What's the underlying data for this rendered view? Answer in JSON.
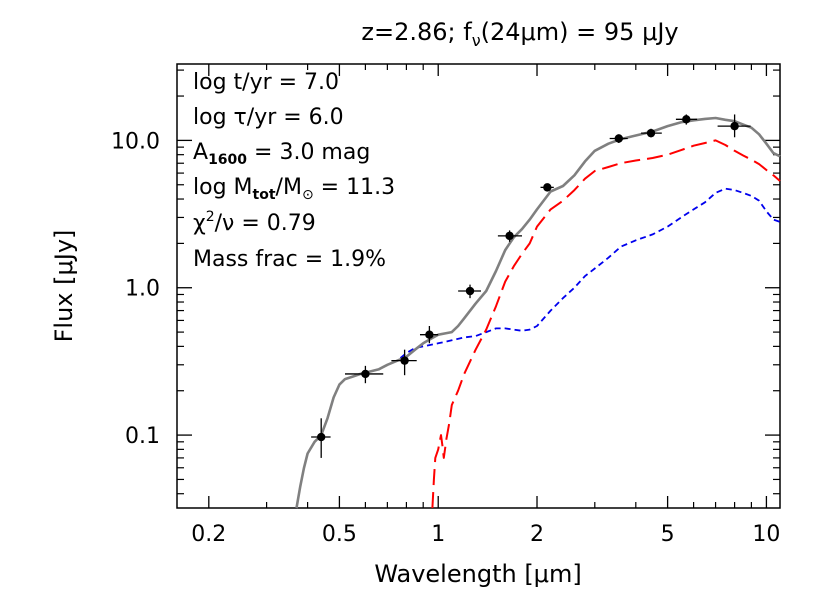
{
  "chart_data": {
    "type": "line",
    "title": "z=2.86; f",
    "title_sub": "ν",
    "title_rest": "(24μm) =  95 μJy",
    "xlabel": "Wavelength [μm]",
    "ylabel": "Flux [μJy]",
    "x_scale": "log",
    "y_scale": "log",
    "xlim": [
      0.16,
      11
    ],
    "ylim": [
      0.032,
      33
    ],
    "x_ticks": [
      0.2,
      0.5,
      1,
      2,
      5,
      10
    ],
    "x_tick_labels": [
      "0.2",
      "0.5",
      "1",
      "2",
      "5",
      "10"
    ],
    "y_ticks": [
      0.1,
      1.0,
      10.0
    ],
    "y_tick_labels": [
      "0.1",
      "1.0",
      "10.0"
    ],
    "annotations": [
      "log t/yr =  7.0",
      "log τ/yr =  6.0",
      "A",
      "1600",
      " = 3.0 mag",
      "log M",
      "tot",
      "/M",
      "⊙",
      " = 11.3",
      "χ",
      "2",
      "/ν = 0.79",
      "Mass frac =  1.9%"
    ],
    "series": [
      {
        "color": "#808080",
        "style": "solid",
        "x": [
          0.37,
          0.38,
          0.39,
          0.4,
          0.42,
          0.44,
          0.46,
          0.48,
          0.5,
          0.52,
          0.55,
          0.58,
          0.62,
          0.66,
          0.7,
          0.75,
          0.8,
          0.85,
          0.9,
          0.95,
          1.0,
          1.05,
          1.1,
          1.15,
          1.2,
          1.3,
          1.4,
          1.5,
          1.6,
          1.7,
          1.8,
          1.9,
          2.0,
          2.2,
          2.4,
          2.6,
          2.8,
          3.0,
          3.3,
          3.6,
          4.0,
          4.5,
          5.0,
          5.5,
          6.0,
          6.5,
          7.0,
          7.5,
          8.0,
          8.5,
          9.0,
          9.5,
          10.0,
          10.5,
          11.0
        ],
        "y": [
          0.032,
          0.045,
          0.06,
          0.075,
          0.09,
          0.1,
          0.13,
          0.18,
          0.22,
          0.24,
          0.25,
          0.26,
          0.27,
          0.28,
          0.3,
          0.32,
          0.34,
          0.38,
          0.42,
          0.45,
          0.48,
          0.49,
          0.5,
          0.55,
          0.62,
          0.78,
          0.95,
          1.3,
          1.8,
          2.2,
          2.5,
          2.9,
          3.4,
          4.5,
          4.9,
          5.8,
          7.2,
          8.5,
          9.5,
          10.2,
          10.8,
          11.5,
          12.5,
          13.3,
          13.7,
          14.0,
          14.2,
          13.8,
          13.5,
          12.8,
          12.2,
          11.0,
          9.5,
          8.2,
          7.8
        ]
      },
      {
        "color": "#ff0000",
        "style": "long-dash",
        "x": [
          0.96,
          0.97,
          0.98,
          1.0,
          1.02,
          1.03,
          1.04,
          1.06,
          1.08,
          1.1,
          1.15,
          1.2,
          1.3,
          1.4,
          1.5,
          1.6,
          1.7,
          1.8,
          1.9,
          2.0,
          2.2,
          2.4,
          2.6,
          2.8,
          3.0,
          3.3,
          3.6,
          4.0,
          4.5,
          5.0,
          5.5,
          6.0,
          6.5,
          7.0,
          7.5,
          8.0,
          8.5,
          9.0,
          9.5,
          10.0,
          10.5,
          11.0
        ],
        "y": [
          0.032,
          0.05,
          0.07,
          0.08,
          0.1,
          0.085,
          0.07,
          0.095,
          0.12,
          0.16,
          0.2,
          0.26,
          0.38,
          0.52,
          0.75,
          1.1,
          1.4,
          1.7,
          2.0,
          2.6,
          3.4,
          3.9,
          4.6,
          5.5,
          6.2,
          6.6,
          7.0,
          7.3,
          7.6,
          8.0,
          8.6,
          9.2,
          9.6,
          10.0,
          9.3,
          8.5,
          7.9,
          7.4,
          6.9,
          6.3,
          5.8,
          5.3
        ]
      },
      {
        "color": "#0000ee",
        "style": "dash",
        "x": [
          0.37,
          0.38,
          0.39,
          0.4,
          0.42,
          0.44,
          0.46,
          0.48,
          0.5,
          0.52,
          0.55,
          0.58,
          0.62,
          0.66,
          0.7,
          0.75,
          0.8,
          0.85,
          0.9,
          1.0,
          1.1,
          1.2,
          1.3,
          1.4,
          1.5,
          1.6,
          1.7,
          1.8,
          1.9,
          2.0,
          2.2,
          2.4,
          2.6,
          2.8,
          3.0,
          3.3,
          3.6,
          4.0,
          4.5,
          5.0,
          5.5,
          6.0,
          6.5,
          7.0,
          7.5,
          8.0,
          8.5,
          9.0,
          9.5,
          10.0,
          10.5,
          11.0
        ],
        "y": [
          0.032,
          0.045,
          0.06,
          0.075,
          0.09,
          0.1,
          0.13,
          0.18,
          0.22,
          0.24,
          0.25,
          0.26,
          0.27,
          0.28,
          0.3,
          0.32,
          0.36,
          0.39,
          0.4,
          0.42,
          0.44,
          0.46,
          0.47,
          0.5,
          0.53,
          0.53,
          0.52,
          0.51,
          0.52,
          0.55,
          0.7,
          0.85,
          1.0,
          1.2,
          1.35,
          1.6,
          1.9,
          2.1,
          2.3,
          2.6,
          3.0,
          3.4,
          3.8,
          4.4,
          4.7,
          4.6,
          4.4,
          4.2,
          3.9,
          3.3,
          2.9,
          2.8
        ]
      }
    ],
    "points": [
      {
        "x": 0.44,
        "y": 0.097,
        "xlo": 0.41,
        "xhi": 0.47,
        "ylo": 0.07,
        "yhi": 0.13
      },
      {
        "x": 0.6,
        "y": 0.26,
        "xlo": 0.52,
        "xhi": 0.68,
        "ylo": 0.225,
        "yhi": 0.295
      },
      {
        "x": 0.79,
        "y": 0.32,
        "xlo": 0.72,
        "xhi": 0.86,
        "ylo": 0.255,
        "yhi": 0.38
      },
      {
        "x": 0.94,
        "y": 0.48,
        "xlo": 0.88,
        "xhi": 1.0,
        "ylo": 0.42,
        "yhi": 0.55
      },
      {
        "x": 1.25,
        "y": 0.95,
        "xlo": 1.15,
        "xhi": 1.35,
        "ylo": 0.85,
        "yhi": 1.05
      },
      {
        "x": 1.65,
        "y": 2.25,
        "xlo": 1.52,
        "xhi": 1.8,
        "ylo": 2.05,
        "yhi": 2.45
      },
      {
        "x": 2.15,
        "y": 4.8,
        "xlo": 2.05,
        "xhi": 2.25,
        "ylo": 4.5,
        "yhi": 5.1
      },
      {
        "x": 3.55,
        "y": 10.3,
        "xlo": 3.33,
        "xhi": 3.78,
        "ylo": 9.6,
        "yhi": 11.0
      },
      {
        "x": 4.45,
        "y": 11.2,
        "xlo": 4.15,
        "xhi": 4.8,
        "ylo": 10.5,
        "yhi": 12.0
      },
      {
        "x": 5.7,
        "y": 13.9,
        "xlo": 5.3,
        "xhi": 6.15,
        "ylo": 12.8,
        "yhi": 15.0
      },
      {
        "x": 8.0,
        "y": 12.5,
        "xlo": 7.1,
        "xhi": 8.95,
        "ylo": 10.5,
        "yhi": 15.0
      }
    ]
  }
}
